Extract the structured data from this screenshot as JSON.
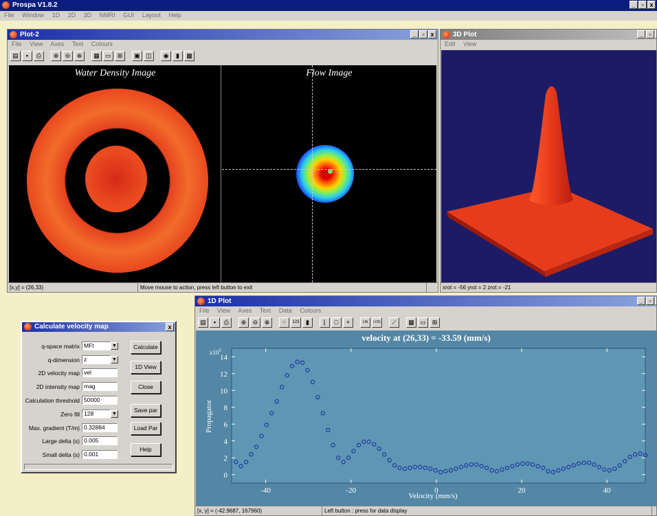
{
  "app": {
    "title": "Prospa V1.8.2",
    "menu": [
      "File",
      "Window",
      "1D",
      "2D",
      "3D",
      "NMRI",
      "GUI",
      "Layout",
      "Help"
    ],
    "buttons": [
      "_",
      "▫",
      "x"
    ]
  },
  "plot2": {
    "title": "Plot-2",
    "menu": [
      "File",
      "View",
      "Axes",
      "Text",
      "Colours"
    ],
    "left_title": "Water Density Image",
    "right_title": "Flow Image",
    "status_xy": "[x,y] = (26,33)",
    "status_hint": "Move mouse to action, press left button to exit"
  },
  "plot3d": {
    "title": "3D Plot",
    "menu": [
      "Edit",
      "View"
    ],
    "status": "xrot = -56  yrot = 2  zrot = -21"
  },
  "plot1d": {
    "title": "1D Plot",
    "menu": [
      "File",
      "View",
      "Axes",
      "Text",
      "Data",
      "Colours"
    ],
    "status_xy": "[x, y] = (-42.9687,  167960)",
    "status_hint": "Left button : press for data display",
    "toolbar_lin": "LIN",
    "toolbar_log": "LOG",
    "toolbar_123": "123"
  },
  "dialog": {
    "title": "Calculate velocity map",
    "fields": [
      {
        "label": "q-space matrix",
        "value": "MFt",
        "dropdown": true
      },
      {
        "label": "q-dimension",
        "value": "z",
        "dropdown": true
      },
      {
        "label": "2D velocity map",
        "value": "vel",
        "dropdown": false
      },
      {
        "label": "2D intensity map",
        "value": "mag",
        "dropdown": false
      },
      {
        "label": "Calculation threshold",
        "value": "50000",
        "dropdown": false
      },
      {
        "label": "Zero fill",
        "value": "128",
        "dropdown": true
      },
      {
        "label": "Max. gradient (T/m)",
        "value": "0.32884",
        "dropdown": false
      },
      {
        "label": "Large delta (s)",
        "value": "0.005",
        "dropdown": false
      },
      {
        "label": "Small delta (s)",
        "value": "0.001",
        "dropdown": false
      }
    ],
    "buttons": [
      "Calculate",
      "1D View",
      "Close",
      "Save par",
      "Load Par",
      "Help"
    ]
  },
  "chart_data": {
    "type": "scatter",
    "title": "velocity at (26,33) = -33.59 (mm/s)",
    "xlabel": "Velocity (mm/s)",
    "ylabel": "Propagator",
    "y_multiplier": "x10",
    "y_exponent": "5",
    "xlim": [
      -48,
      49
    ],
    "ylim": [
      -1,
      15
    ],
    "xticks": [
      -40,
      -20,
      0,
      20,
      40
    ],
    "yticks": [
      0,
      2,
      4,
      6,
      8,
      10,
      12,
      14
    ],
    "grid": false,
    "colors": {
      "background": "#5f96b4",
      "marker": "#1d3a9e",
      "panel": "#5487a6"
    },
    "x": [
      -47,
      -45.8,
      -44.6,
      -43.4,
      -42.2,
      -41,
      -39.8,
      -38.6,
      -37.4,
      -36.2,
      -35,
      -33.8,
      -32.6,
      -31.4,
      -30.2,
      -29,
      -27.8,
      -26.6,
      -25.4,
      -24.2,
      -23,
      -21.8,
      -20.6,
      -19.4,
      -18.2,
      -17,
      -15.8,
      -14.6,
      -13.4,
      -12.2,
      -11,
      -9.8,
      -8.6,
      -7.4,
      -6.2,
      -5,
      -3.8,
      -2.6,
      -1.4,
      -0.2,
      1,
      2.2,
      3.4,
      4.6,
      5.8,
      7,
      8.2,
      9.4,
      10.6,
      11.8,
      13,
      14.2,
      15.4,
      16.6,
      17.8,
      19,
      20.2,
      21.4,
      22.6,
      23.8,
      25,
      26.2,
      27.4,
      28.6,
      29.8,
      31,
      32.2,
      33.4,
      34.6,
      35.8,
      37,
      38.2,
      39.4,
      40.6,
      41.8,
      43,
      44.2,
      45.4,
      46.6,
      47.8,
      49
    ],
    "y": [
      1.5,
      1.0,
      1.5,
      2.4,
      3.3,
      4.6,
      5.9,
      7.3,
      8.7,
      10.4,
      11.8,
      12.9,
      13.4,
      13.3,
      12.4,
      11.0,
      9.2,
      7.3,
      5.3,
      3.5,
      2.0,
      1.5,
      2.0,
      2.8,
      3.5,
      3.9,
      3.9,
      3.6,
      3.1,
      2.4,
      1.7,
      1.1,
      0.8,
      0.7,
      0.8,
      0.9,
      0.9,
      0.8,
      0.7,
      0.5,
      0.3,
      0.4,
      0.5,
      0.7,
      0.9,
      1.1,
      1.2,
      1.2,
      1.0,
      0.8,
      0.5,
      0.4,
      0.6,
      0.8,
      1.0,
      1.2,
      1.3,
      1.3,
      1.2,
      1.0,
      0.8,
      0.4,
      0.3,
      0.5,
      0.7,
      0.9,
      1.1,
      1.3,
      1.4,
      1.4,
      1.2,
      0.9,
      0.6,
      0.5,
      0.7,
      1.1,
      1.6,
      2.1,
      2.4,
      2.5,
      2.3
    ]
  }
}
